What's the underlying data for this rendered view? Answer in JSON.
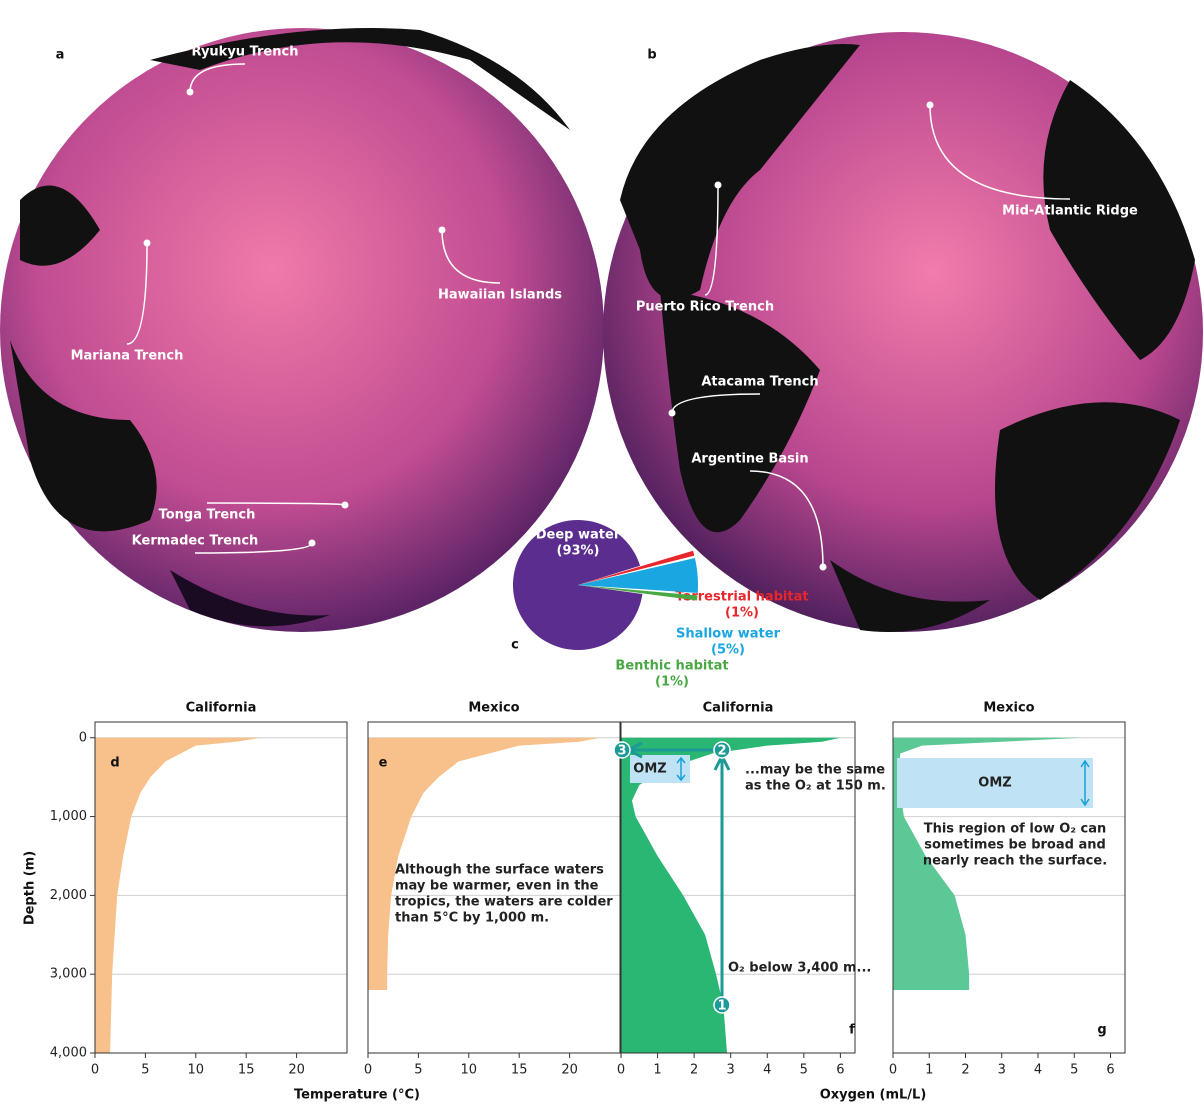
{
  "globes": [
    {
      "panel_label": "a",
      "labels": [
        "Ryukyu Trench",
        "Mariana Trench",
        "Hawaiian Islands",
        "Tonga Trench",
        "Kermadec Trench"
      ]
    },
    {
      "panel_label": "b",
      "labels": [
        "Mid-Atlantic Ridge",
        "Puerto Rico Trench",
        "Atacama Trench",
        "Argentine Basin"
      ]
    }
  ],
  "chart_data": [
    {
      "type": "pie",
      "panel_label": "c",
      "categories": [
        "Deep water",
        "Terrestrial habitat",
        "Shallow water",
        "Benthic habitat"
      ],
      "values": [
        93,
        1,
        5,
        1
      ],
      "value_labels": [
        "(93%)",
        "(1%)",
        "(5%)",
        "(1%)"
      ],
      "colors": [
        "#5b2d8e",
        "#e8262b",
        "#1aa6e0",
        "#4aa844"
      ]
    },
    {
      "type": "profile",
      "panel_label": "d",
      "title": "California",
      "x_label": "Temperature (°C)",
      "y_label": "Depth (m)",
      "color": "#f8c08a",
      "y": [
        0,
        50,
        100,
        200,
        300,
        500,
        700,
        1000,
        1500,
        2000,
        3000,
        4000
      ],
      "values": [
        16.5,
        14,
        10,
        8.5,
        7,
        5.5,
        4.5,
        3.6,
        2.8,
        2.2,
        1.7,
        1.5
      ],
      "xlim": [
        0,
        25
      ],
      "xticks": [
        0,
        5,
        10,
        15,
        20
      ],
      "ylim": [
        4000,
        -200
      ],
      "yticks": [
        0,
        {
          "value": 1000,
          "label": "1,000"
        },
        {
          "value": 2000,
          "label": "2,000"
        },
        {
          "value": 3000,
          "label": "3,000"
        },
        {
          "value": 4000,
          "label": "4,000"
        }
      ],
      "grid": true
    },
    {
      "type": "profile",
      "panel_label": "e",
      "title": "Mexico",
      "color": "#f8c08a",
      "y": [
        0,
        50,
        100,
        200,
        300,
        500,
        700,
        1000,
        1500,
        2000,
        2500,
        3000,
        3200
      ],
      "values": [
        23,
        21,
        15,
        12,
        9,
        7,
        5.5,
        4.3,
        3,
        2.3,
        2,
        1.9,
        1.9
      ],
      "xlim": [
        0,
        25
      ],
      "xticks": [
        0,
        5,
        10,
        15,
        20
      ],
      "ylim": [
        4000,
        -200
      ],
      "yticks": [
        0,
        1000,
        2000,
        3000,
        4000
      ],
      "grid": true,
      "annotation": [
        "Although the surface waters",
        "may be warmer, even in the",
        "tropics, the waters are colder",
        "than 5°C by 1,000 m."
      ]
    },
    {
      "type": "profile",
      "panel_label": "f",
      "title": "California",
      "x_label": "Oxygen (mL/L)",
      "color": "#2ab673",
      "y": [
        0,
        50,
        100,
        200,
        400,
        600,
        800,
        1000,
        1500,
        2000,
        2500,
        3000,
        3400,
        4000
      ],
      "values": [
        6,
        5.5,
        4,
        2.5,
        1.2,
        0.5,
        0.3,
        0.4,
        1,
        1.7,
        2.3,
        2.6,
        2.8,
        2.9
      ],
      "xlim": [
        0,
        6.4
      ],
      "xticks": [
        0,
        1,
        2,
        3,
        4,
        5,
        6
      ],
      "ylim": [
        4000,
        -200
      ],
      "yticks": [
        0,
        1000,
        2000,
        3000,
        4000
      ],
      "grid": true,
      "omz": "OMZ",
      "markers": [
        "1",
        "2",
        "3"
      ],
      "annotation": [
        "...may be the same",
        "as the O₂ at 150 m."
      ],
      "annotation_2": "O₂ below 3,400 m..."
    },
    {
      "type": "profile",
      "panel_label": "g",
      "title": "Mexico",
      "color": "#5cc895",
      "y": [
        0,
        50,
        100,
        200,
        500,
        1000,
        1500,
        2000,
        2500,
        3000,
        3200
      ],
      "values": [
        5.2,
        3,
        0.8,
        0.2,
        0.15,
        0.3,
        0.9,
        1.7,
        2,
        2.1,
        2.1
      ],
      "xlim": [
        0,
        6.4
      ],
      "xticks": [
        0,
        1,
        2,
        3,
        4,
        5,
        6
      ],
      "ylim": [
        4000,
        -200
      ],
      "yticks": [
        0,
        1000,
        2000,
        3000,
        4000
      ],
      "grid": true,
      "omz": "OMZ",
      "annotation": [
        "This region of low O₂ can",
        "sometimes be broad and",
        "nearly reach the surface."
      ]
    }
  ]
}
